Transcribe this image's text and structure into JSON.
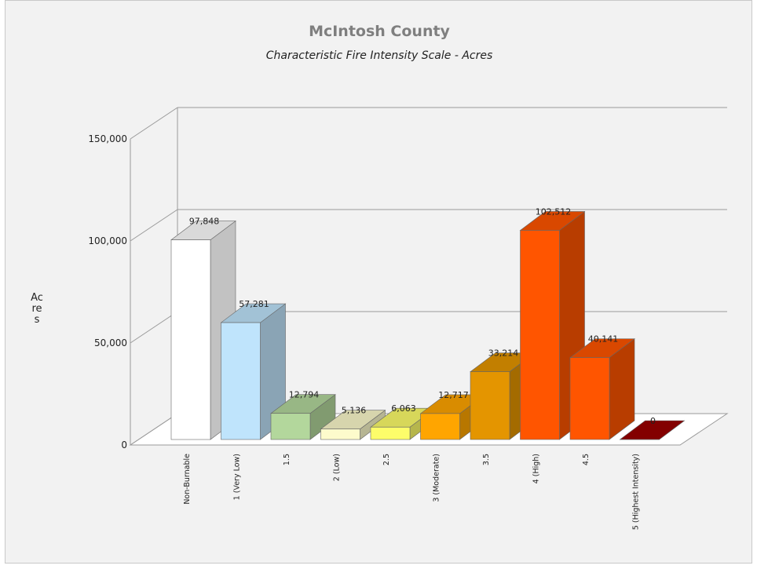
{
  "chart_data": {
    "type": "bar",
    "title": "McIntosh County",
    "subtitle": "Characteristic Fire Intensity Scale - Acres",
    "ylabel": "Acres",
    "ylim": [
      0,
      150000
    ],
    "yticks": [
      {
        "value": 0,
        "label": "0"
      },
      {
        "value": 50000,
        "label": "50,000"
      },
      {
        "value": 100000,
        "label": "100,000"
      },
      {
        "value": 150000,
        "label": "150,000"
      }
    ],
    "categories": [
      "Non-Burnable",
      "1 (Very Low)",
      "1.5",
      "2 (Low)",
      "2.5",
      "3 (Moderate)",
      "3.5",
      "4 (High)",
      "4.5",
      "5 (Highest Intensity)"
    ],
    "values": [
      97848,
      57281,
      12794,
      5136,
      6063,
      12717,
      33214,
      102512,
      40141,
      0
    ],
    "value_labels": [
      "97,848",
      "57,281",
      "12,794",
      "5,136",
      "6,063",
      "12,717",
      "33,214",
      "102,512",
      "40,141",
      "0"
    ],
    "colors": [
      "#ffffff",
      "#bfe4fc",
      "#b3d79c",
      "#fdfbcc",
      "#fdfd6a",
      "#ffa500",
      "#e49500",
      "#ff5500",
      "#ff5500",
      "#9a0000"
    ],
    "grid": true,
    "legend": "none"
  }
}
